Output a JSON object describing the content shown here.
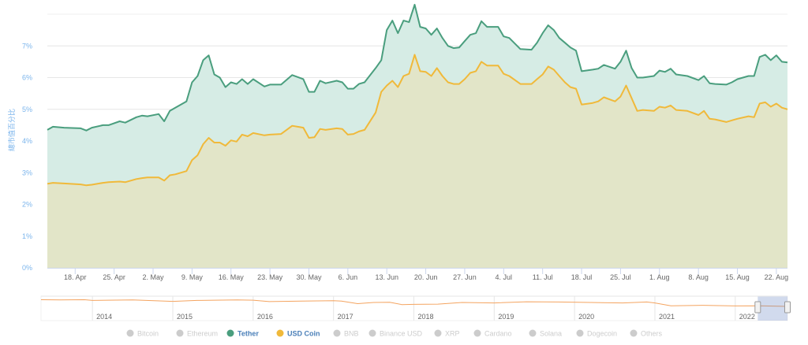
{
  "chart_data": {
    "type": "area",
    "ylabel": "總市值百分比",
    "ylim": [
      0,
      8
    ],
    "yticks": [
      "0%",
      "1%",
      "2%",
      "3%",
      "4%",
      "5%",
      "6%",
      "7%"
    ],
    "x_unit": "days since 13 Apr 2022",
    "xlim": [
      0,
      133
    ],
    "xticks": [
      {
        "day": 5,
        "label": "18. Apr"
      },
      {
        "day": 12,
        "label": "25. Apr"
      },
      {
        "day": 19,
        "label": "2. May"
      },
      {
        "day": 26,
        "label": "9. May"
      },
      {
        "day": 33,
        "label": "16. May"
      },
      {
        "day": 40,
        "label": "23. May"
      },
      {
        "day": 47,
        "label": "30. May"
      },
      {
        "day": 54,
        "label": "6. Jun"
      },
      {
        "day": 61,
        "label": "13. Jun"
      },
      {
        "day": 68,
        "label": "20. Jun"
      },
      {
        "day": 75,
        "label": "27. Jun"
      },
      {
        "day": 82,
        "label": "4. Jul"
      },
      {
        "day": 89,
        "label": "11. Jul"
      },
      {
        "day": 96,
        "label": "18. Jul"
      },
      {
        "day": 103,
        "label": "25. Jul"
      },
      {
        "day": 110,
        "label": "1. Aug"
      },
      {
        "day": 117,
        "label": "8. Aug"
      },
      {
        "day": 124,
        "label": "15. Aug"
      },
      {
        "day": 131,
        "label": "22. Aug"
      }
    ],
    "x": [
      0,
      1,
      3,
      6,
      7,
      8,
      10,
      11,
      13,
      14,
      16,
      17,
      18,
      20,
      21,
      22,
      23,
      25,
      26,
      27,
      28,
      29,
      30,
      31,
      32,
      33,
      34,
      35,
      36,
      37,
      39,
      40,
      42,
      44,
      46,
      47,
      48,
      49,
      50,
      52,
      53,
      54,
      55,
      56,
      57,
      59,
      60,
      61,
      62,
      63,
      64,
      65,
      66,
      67,
      68,
      69,
      70,
      71,
      72,
      73,
      74,
      75,
      76,
      77,
      78,
      79,
      81,
      82,
      83,
      85,
      87,
      88,
      89,
      90,
      91,
      92,
      93,
      94,
      95,
      96,
      98,
      99,
      100,
      102,
      103,
      104,
      105,
      106,
      107,
      109,
      110,
      111,
      112,
      113,
      115,
      117,
      118,
      119,
      120,
      122,
      123,
      124,
      126,
      127,
      128,
      129,
      130,
      131,
      132,
      133
    ],
    "series": [
      {
        "name": "Tether",
        "color": "#4a9e7e",
        "fill": "#d6ece5",
        "values": [
          4.35,
          4.45,
          4.42,
          4.4,
          4.33,
          4.42,
          4.5,
          4.5,
          4.62,
          4.58,
          4.75,
          4.8,
          4.78,
          4.85,
          4.62,
          4.95,
          5.05,
          5.25,
          5.85,
          6.05,
          6.55,
          6.7,
          6.1,
          6.0,
          5.7,
          5.85,
          5.8,
          5.95,
          5.8,
          5.95,
          5.72,
          5.78,
          5.78,
          6.08,
          5.95,
          5.55,
          5.55,
          5.9,
          5.82,
          5.9,
          5.85,
          5.65,
          5.65,
          5.8,
          5.85,
          6.3,
          6.55,
          7.5,
          7.8,
          7.4,
          7.8,
          7.75,
          8.3,
          7.6,
          7.55,
          7.35,
          7.55,
          7.25,
          7.0,
          6.93,
          6.95,
          7.15,
          7.35,
          7.4,
          7.78,
          7.6,
          7.6,
          7.3,
          7.25,
          6.9,
          6.88,
          7.1,
          7.4,
          7.65,
          7.5,
          7.25,
          7.1,
          6.95,
          6.85,
          6.2,
          6.25,
          6.28,
          6.4,
          6.28,
          6.5,
          6.85,
          6.3,
          6.0,
          6.0,
          6.05,
          6.22,
          6.18,
          6.28,
          6.1,
          6.05,
          5.92,
          6.05,
          5.82,
          5.8,
          5.78,
          5.85,
          5.95,
          6.05,
          6.05,
          6.65,
          6.72,
          6.55,
          6.7,
          6.5,
          6.48
        ]
      },
      {
        "name": "USD Coin",
        "color": "#f0b93a",
        "fill": "#e2e5c8",
        "values": [
          2.65,
          2.68,
          2.66,
          2.63,
          2.6,
          2.62,
          2.68,
          2.7,
          2.72,
          2.7,
          2.8,
          2.83,
          2.85,
          2.85,
          2.75,
          2.92,
          2.95,
          3.05,
          3.4,
          3.55,
          3.9,
          4.1,
          3.95,
          3.95,
          3.85,
          4.02,
          3.98,
          4.2,
          4.15,
          4.25,
          4.18,
          4.2,
          4.22,
          4.48,
          4.42,
          4.1,
          4.12,
          4.38,
          4.35,
          4.4,
          4.38,
          4.2,
          4.22,
          4.3,
          4.35,
          4.9,
          5.55,
          5.75,
          5.9,
          5.7,
          6.05,
          6.12,
          6.72,
          6.2,
          6.18,
          6.05,
          6.3,
          6.05,
          5.85,
          5.8,
          5.8,
          5.95,
          6.15,
          6.2,
          6.5,
          6.38,
          6.38,
          6.12,
          6.05,
          5.8,
          5.8,
          5.95,
          6.1,
          6.35,
          6.25,
          6.05,
          5.85,
          5.7,
          5.65,
          5.15,
          5.2,
          5.25,
          5.38,
          5.25,
          5.4,
          5.75,
          5.35,
          4.95,
          4.98,
          4.95,
          5.08,
          5.05,
          5.12,
          4.98,
          4.95,
          4.82,
          4.95,
          4.7,
          4.68,
          4.6,
          4.65,
          4.7,
          4.78,
          4.75,
          5.18,
          5.22,
          5.08,
          5.18,
          5.05,
          5.0
        ]
      }
    ],
    "legend": [
      {
        "name": "Bitcoin",
        "active": false,
        "color": "#cccccc"
      },
      {
        "name": "Ethereum",
        "active": false,
        "color": "#cccccc"
      },
      {
        "name": "Tether",
        "active": true,
        "color": "#4a9e7e"
      },
      {
        "name": "USD Coin",
        "active": true,
        "color": "#f0b93a"
      },
      {
        "name": "BNB",
        "active": false,
        "color": "#cccccc"
      },
      {
        "name": "Binance USD",
        "active": false,
        "color": "#cccccc"
      },
      {
        "name": "XRP",
        "active": false,
        "color": "#cccccc"
      },
      {
        "name": "Cardano",
        "active": false,
        "color": "#cccccc"
      },
      {
        "name": "Solana",
        "active": false,
        "color": "#cccccc"
      },
      {
        "name": "Dogecoin",
        "active": false,
        "color": "#cccccc"
      },
      {
        "name": "Others",
        "active": false,
        "color": "#cccccc"
      }
    ],
    "legend_position": "bottom",
    "navigator": {
      "years": [
        "2014",
        "2015",
        "2016",
        "2017",
        "2018",
        "2019",
        "2020",
        "2021",
        "2022"
      ],
      "year_start": 2013.36,
      "year_end": 2022.65,
      "selected_range": [
        2022.28,
        2022.65
      ],
      "points": [
        [
          2013.36,
          9.0
        ],
        [
          2013.6,
          8.9
        ],
        [
          2013.9,
          9.0
        ],
        [
          2014.0,
          8.7
        ],
        [
          2014.5,
          8.9
        ],
        [
          2015.0,
          8.3
        ],
        [
          2015.3,
          8.7
        ],
        [
          2015.8,
          8.9
        ],
        [
          2016.0,
          8.8
        ],
        [
          2016.2,
          8.2
        ],
        [
          2016.6,
          8.4
        ],
        [
          2017.0,
          8.6
        ],
        [
          2017.1,
          8.4
        ],
        [
          2017.3,
          7.3
        ],
        [
          2017.5,
          7.8
        ],
        [
          2017.7,
          7.9
        ],
        [
          2017.85,
          6.9
        ],
        [
          2018.0,
          7.0
        ],
        [
          2018.3,
          7.1
        ],
        [
          2018.6,
          7.8
        ],
        [
          2019.0,
          7.6
        ],
        [
          2019.4,
          8.1
        ],
        [
          2019.8,
          8.0
        ],
        [
          2020.2,
          7.8
        ],
        [
          2020.6,
          7.6
        ],
        [
          2020.9,
          8.0
        ],
        [
          2021.0,
          7.6
        ],
        [
          2021.2,
          6.4
        ],
        [
          2021.6,
          6.6
        ],
        [
          2022.0,
          6.3
        ],
        [
          2022.3,
          6.4
        ],
        [
          2022.65,
          6.1
        ]
      ]
    }
  }
}
